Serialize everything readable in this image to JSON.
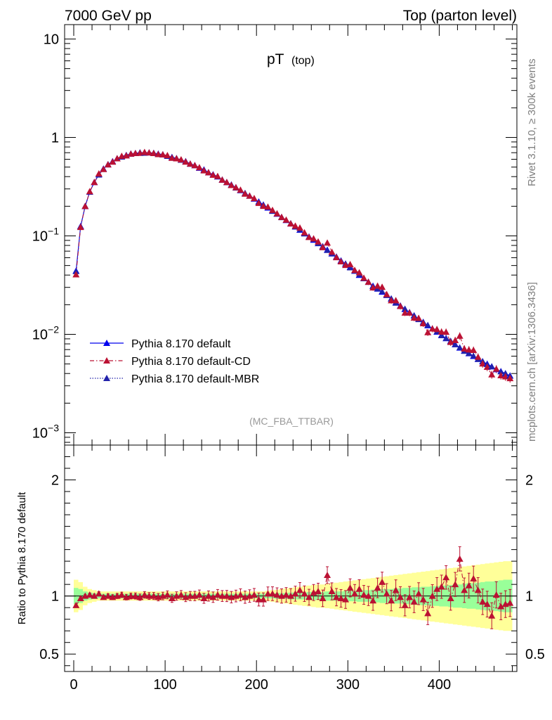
{
  "header": {
    "left": "7000 GeV pp",
    "right": "Top (parton level)"
  },
  "side": {
    "rivet": "Rivet 3.1.10, ≥ 300k events",
    "mcplots": "mcplots.cern.ch [arXiv:1306.3436]"
  },
  "chart_data": {
    "type": "line",
    "title_main": "pT",
    "title_sub": "(top)",
    "analysis_label": "(MC_FBA_TTBAR)",
    "ylabel_ratio": "Ratio to Pythia 8.170 default",
    "xlabel": "",
    "xlim": [
      -10,
      485
    ],
    "xticks": [
      "0",
      "100",
      "200",
      "300",
      "400"
    ],
    "xtick_values": [
      0,
      100,
      200,
      300,
      400
    ],
    "main_ylim": [
      0.00075,
      14
    ],
    "main_yscale": "log",
    "main_yticks": [
      {
        "base": "10",
        "exp": "",
        "plain": "10",
        "v": 10
      },
      {
        "base": "1",
        "exp": "",
        "plain": "1",
        "v": 1
      },
      {
        "base": "10",
        "exp": "−1",
        "plain": "",
        "v": 0.1
      },
      {
        "base": "10",
        "exp": "−2",
        "plain": "",
        "v": 0.01
      },
      {
        "base": "10",
        "exp": "−3",
        "plain": "",
        "v": 0.001
      }
    ],
    "ratio_ylim": [
      0.35,
      2.3
    ],
    "ratio_yticks": [
      "2",
      "1",
      "0.5"
    ],
    "ratio_ytick_values": [
      2,
      1,
      0.5
    ],
    "legend_position": "bottom-left",
    "series": [
      {
        "name": "Pythia 8.170 default",
        "color": "#0000ee",
        "style": "solid"
      },
      {
        "name": "Pythia 8.170 default-CD",
        "color": "#bb1133",
        "style": "dashdot"
      },
      {
        "name": "Pythia 8.170 default-MBR",
        "color": "#2222aa",
        "style": "dotted"
      }
    ],
    "bin_centers": [
      2.5,
      7.5,
      12.5,
      17.5,
      22.5,
      27.5,
      32.5,
      37.5,
      42.5,
      47.5,
      52.5,
      57.5,
      62.5,
      67.5,
      72.5,
      77.5,
      82.5,
      87.5,
      92.5,
      97.5,
      102.5,
      107.5,
      112.5,
      117.5,
      122.5,
      127.5,
      132.5,
      137.5,
      142.5,
      147.5,
      152.5,
      157.5,
      162.5,
      167.5,
      172.5,
      177.5,
      182.5,
      187.5,
      192.5,
      197.5,
      202.5,
      207.5,
      212.5,
      217.5,
      222.5,
      227.5,
      232.5,
      237.5,
      242.5,
      247.5,
      252.5,
      257.5,
      262.5,
      267.5,
      272.5,
      277.5,
      282.5,
      287.5,
      292.5,
      297.5,
      302.5,
      307.5,
      312.5,
      317.5,
      322.5,
      327.5,
      332.5,
      337.5,
      342.5,
      347.5,
      352.5,
      357.5,
      362.5,
      367.5,
      372.5,
      377.5,
      382.5,
      387.5,
      392.5,
      397.5,
      402.5,
      407.5,
      412.5,
      417.5,
      422.5,
      427.5,
      432.5,
      437.5,
      442.5,
      447.5,
      452.5,
      457.5,
      462.5,
      467.5,
      472.5,
      477.5
    ],
    "default_values": [
      0.044,
      0.125,
      0.2,
      0.28,
      0.35,
      0.42,
      0.48,
      0.53,
      0.57,
      0.61,
      0.64,
      0.66,
      0.68,
      0.69,
      0.7,
      0.7,
      0.7,
      0.69,
      0.68,
      0.67,
      0.65,
      0.63,
      0.61,
      0.59,
      0.57,
      0.54,
      0.52,
      0.49,
      0.47,
      0.44,
      0.42,
      0.4,
      0.37,
      0.35,
      0.33,
      0.31,
      0.29,
      0.27,
      0.255,
      0.238,
      0.222,
      0.207,
      0.193,
      0.179,
      0.167,
      0.155,
      0.144,
      0.133,
      0.124,
      0.115,
      0.106,
      0.098,
      0.091,
      0.084,
      0.078,
      0.072,
      0.066,
      0.061,
      0.056,
      0.052,
      0.048,
      0.044,
      0.04,
      0.037,
      0.034,
      0.031,
      0.029,
      0.027,
      0.025,
      0.023,
      0.021,
      0.0195,
      0.018,
      0.0167,
      0.0155,
      0.0143,
      0.0133,
      0.0123,
      0.0114,
      0.0106,
      0.0098,
      0.0091,
      0.0085,
      0.0079,
      0.0073,
      0.0068,
      0.0064,
      0.006,
      0.0056,
      0.0053,
      0.005,
      0.0047,
      0.0044,
      0.0042,
      0.004,
      0.0038
    ],
    "ratio_cd": [
      0.92,
      0.98,
      1.0,
      1.01,
      1.0,
      1.02,
      0.99,
      1.0,
      0.99,
      1.0,
      1.01,
      0.99,
      1.0,
      1.0,
      0.99,
      1.01,
      1.0,
      1.0,
      0.99,
      1.0,
      1.01,
      0.98,
      1.0,
      1.01,
      0.99,
      1.0,
      1.0,
      1.01,
      0.98,
      1.0,
      0.99,
      1.01,
      1.0,
      1.0,
      0.99,
      1.0,
      1.01,
      0.99,
      1.0,
      1.01,
      0.97,
      0.97,
      1.02,
      1.02,
      1.01,
      1.0,
      1.01,
      1.0,
      1.02,
      1.05,
      1.02,
      0.99,
      1.03,
      1.04,
      0.98,
      1.18,
      1.04,
      0.99,
      0.98,
      0.97,
      1.07,
      1.02,
      1.06,
      1.01,
      1.0,
      0.96,
      1.07,
      1.12,
      1.02,
      0.96,
      1.05,
      0.99,
      0.92,
      0.99,
      0.95,
      1.02,
      0.97,
      0.85,
      1.0,
      1.06,
      1.08,
      1.16,
      0.98,
      1.1,
      1.32,
      1.05,
      1.09,
      1.15,
      1.05,
      0.95,
      0.93,
      0.83,
      1.01,
      0.91,
      0.93,
      0.94
    ],
    "band_green": [
      0.07,
      0.06,
      0.04,
      0.03,
      0.025,
      0.02,
      0.02,
      0.02,
      0.02,
      0.02,
      0.02,
      0.02,
      0.02,
      0.02,
      0.02,
      0.02,
      0.02,
      0.02,
      0.02,
      0.02,
      0.02,
      0.02,
      0.02,
      0.02,
      0.02,
      0.02,
      0.02,
      0.02,
      0.02,
      0.02,
      0.02,
      0.02,
      0.02,
      0.02,
      0.02,
      0.02,
      0.02,
      0.02,
      0.02,
      0.02,
      0.02,
      0.02,
      0.02,
      0.02,
      0.025,
      0.025,
      0.025,
      0.03,
      0.03,
      0.03,
      0.03,
      0.035,
      0.035,
      0.035,
      0.035,
      0.04,
      0.04,
      0.04,
      0.04,
      0.045,
      0.045,
      0.045,
      0.05,
      0.05,
      0.05,
      0.055,
      0.055,
      0.06,
      0.06,
      0.06,
      0.065,
      0.065,
      0.07,
      0.07,
      0.075,
      0.075,
      0.08,
      0.08,
      0.085,
      0.085,
      0.09,
      0.09,
      0.095,
      0.1,
      0.1,
      0.105,
      0.11,
      0.11,
      0.115,
      0.12,
      0.125,
      0.125,
      0.13,
      0.135,
      0.14,
      0.14
    ],
    "band_yellow": [
      0.14,
      0.12,
      0.08,
      0.06,
      0.05,
      0.04,
      0.04,
      0.04,
      0.04,
      0.04,
      0.04,
      0.04,
      0.04,
      0.04,
      0.04,
      0.04,
      0.04,
      0.04,
      0.04,
      0.04,
      0.04,
      0.04,
      0.04,
      0.04,
      0.04,
      0.04,
      0.04,
      0.04,
      0.04,
      0.04,
      0.04,
      0.04,
      0.04,
      0.04,
      0.04,
      0.04,
      0.04,
      0.04,
      0.04,
      0.04,
      0.04,
      0.04,
      0.045,
      0.05,
      0.055,
      0.06,
      0.065,
      0.07,
      0.075,
      0.08,
      0.085,
      0.09,
      0.095,
      0.1,
      0.1,
      0.105,
      0.11,
      0.115,
      0.12,
      0.125,
      0.13,
      0.135,
      0.14,
      0.145,
      0.15,
      0.155,
      0.16,
      0.165,
      0.17,
      0.175,
      0.18,
      0.185,
      0.19,
      0.195,
      0.2,
      0.205,
      0.21,
      0.215,
      0.22,
      0.225,
      0.23,
      0.235,
      0.24,
      0.245,
      0.25,
      0.255,
      0.26,
      0.265,
      0.27,
      0.275,
      0.28,
      0.285,
      0.29,
      0.295,
      0.3,
      0.3
    ]
  }
}
